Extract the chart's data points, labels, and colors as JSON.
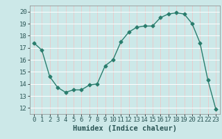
{
  "x": [
    0,
    1,
    2,
    3,
    4,
    5,
    6,
    7,
    8,
    9,
    10,
    11,
    12,
    13,
    14,
    15,
    16,
    17,
    18,
    19,
    20,
    21,
    22,
    23
  ],
  "y": [
    17.4,
    16.8,
    14.6,
    13.7,
    13.3,
    13.5,
    13.5,
    13.9,
    14.0,
    15.5,
    16.0,
    17.5,
    18.3,
    18.7,
    18.8,
    18.8,
    19.5,
    19.8,
    19.9,
    19.8,
    19.0,
    17.4,
    14.3,
    11.9
  ],
  "line_color": "#2a7d6d",
  "marker": "D",
  "marker_size": 2.5,
  "bg_color": "#cce8e8",
  "grid_color": "#ffffff",
  "grid_red_color": "#e8cccc",
  "xlabel": "Humidex (Indice chaleur)",
  "xlabel_fontsize": 7.5,
  "tick_fontsize": 6.5,
  "ylim": [
    11.5,
    20.5
  ],
  "xlim": [
    -0.5,
    23.5
  ],
  "yticks": [
    12,
    13,
    14,
    15,
    16,
    17,
    18,
    19,
    20
  ],
  "xticks": [
    0,
    1,
    2,
    3,
    4,
    5,
    6,
    7,
    8,
    9,
    10,
    11,
    12,
    13,
    14,
    15,
    16,
    17,
    18,
    19,
    20,
    21,
    22,
    23
  ]
}
